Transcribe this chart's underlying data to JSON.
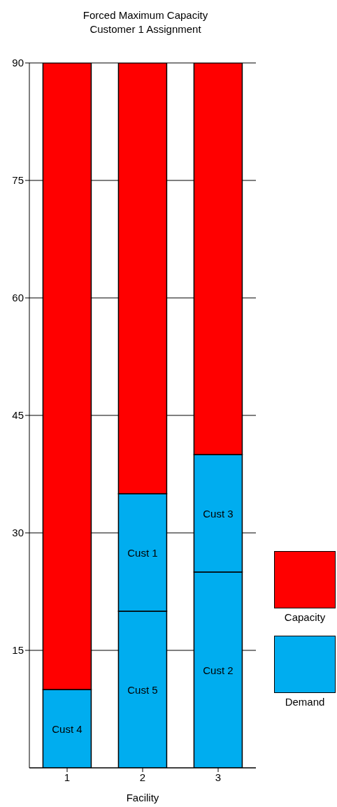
{
  "chart_data": {
    "type": "bar",
    "title": "Forced Maximum Capacity\nCustomer 1 Assignment",
    "xlabel": "Facility",
    "categories": [
      "1",
      "2",
      "3"
    ],
    "stacked": true,
    "series": [
      {
        "name": "Demand",
        "color": "#00adef",
        "values": [
          10,
          20,
          25
        ],
        "value_labels": [
          "Cust 4",
          "Cust 5",
          "Cust 2"
        ]
      },
      {
        "color": "#00adef",
        "values": [
          null,
          15,
          15
        ],
        "value_labels": [
          null,
          "Cust 1",
          "Cust 3"
        ]
      },
      {
        "name": "Capacity",
        "color": "#ff0000",
        "values": [
          80,
          55,
          50
        ]
      }
    ],
    "ylim": [
      0,
      90
    ],
    "yticks": [
      15,
      30,
      45,
      60,
      75,
      90
    ],
    "grid": "y",
    "legend": "right"
  }
}
